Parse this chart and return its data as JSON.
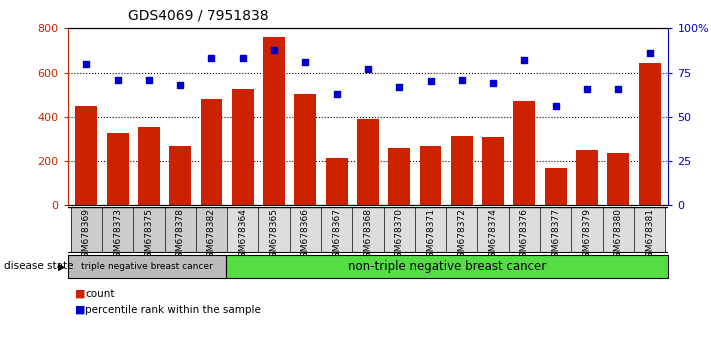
{
  "title": "GDS4069 / 7951838",
  "samples": [
    "GSM678369",
    "GSM678373",
    "GSM678375",
    "GSM678378",
    "GSM678382",
    "GSM678364",
    "GSM678365",
    "GSM678366",
    "GSM678367",
    "GSM678368",
    "GSM678370",
    "GSM678371",
    "GSM678372",
    "GSM678374",
    "GSM678376",
    "GSM678377",
    "GSM678379",
    "GSM678380",
    "GSM678381"
  ],
  "counts": [
    450,
    325,
    355,
    268,
    480,
    525,
    762,
    505,
    215,
    388,
    260,
    268,
    315,
    308,
    470,
    168,
    252,
    238,
    645
  ],
  "percentiles": [
    80,
    71,
    71,
    68,
    83,
    83,
    88,
    81,
    63,
    77,
    67,
    70,
    71,
    69,
    82,
    56,
    66,
    66,
    86
  ],
  "bar_color": "#cc2200",
  "dot_color": "#0000cc",
  "left_ylim": [
    0,
    800
  ],
  "right_ylim": [
    0,
    100
  ],
  "left_yticks": [
    0,
    200,
    400,
    600,
    800
  ],
  "right_yticks": [
    0,
    25,
    50,
    75,
    100
  ],
  "right_yticklabels": [
    "0",
    "25",
    "50",
    "75",
    "100%"
  ],
  "grid_lines": [
    200,
    400,
    600
  ],
  "triple_neg_count": 5,
  "label_triple": "triple negative breast cancer",
  "label_non_triple": "non-triple negative breast cancer",
  "disease_state_label": "disease state",
  "legend_count": "count",
  "legend_percentile": "percentile rank within the sample",
  "bg_triple": "#bbbbbb",
  "bg_non_triple": "#55dd44",
  "title_fontsize": 10,
  "axis_label_color_left": "#cc2200",
  "axis_label_color_right": "#0000cc",
  "tick_bg_color": "#cccccc"
}
